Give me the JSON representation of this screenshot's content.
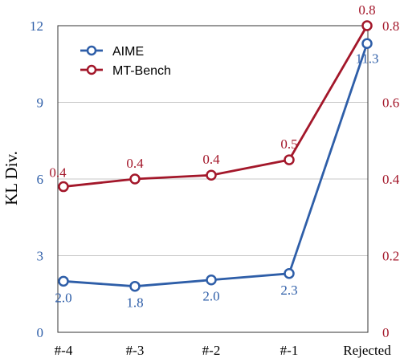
{
  "chart_data": {
    "type": "line",
    "categories": [
      "#-4",
      "#-3",
      "#-2",
      "#-1",
      "Rejected"
    ],
    "ylabel": "KL Div.",
    "ylim": [
      0,
      12
    ],
    "yticks": [
      "0",
      "3",
      "6",
      "9",
      "12"
    ],
    "y2lim": [
      0,
      0.8
    ],
    "y2ticks": [
      "0",
      "0.2",
      "0.4",
      "0.6",
      "0.8"
    ],
    "grid": "horizontal",
    "legend_position": "top-left",
    "series": [
      {
        "name": "AIME",
        "axis": "left",
        "color": "#2e5ea8",
        "values": [
          2.0,
          1.8,
          2.05,
          2.3,
          11.3
        ],
        "labels": [
          "2.0",
          "1.8",
          "2.0",
          "2.3",
          "11.3"
        ]
      },
      {
        "name": "MT-Bench",
        "axis": "right",
        "color": "#a3172a",
        "values": [
          0.38,
          0.4,
          0.41,
          0.45,
          0.8
        ],
        "labels": [
          "0.4",
          "0.4",
          "0.4",
          "0.5",
          "0.8"
        ]
      }
    ]
  }
}
